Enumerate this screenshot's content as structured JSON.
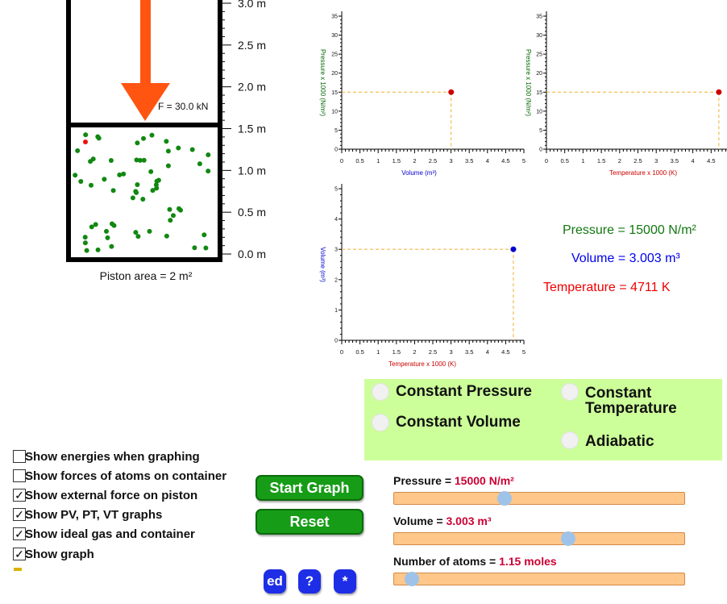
{
  "cylinder": {
    "force_label": "F = 30.0 kN",
    "piston_area": "Piston area = 2 m²",
    "scale_labels": [
      "3.0 m",
      "2.5 m",
      "2.0 m",
      "1.5 m",
      "1.0 m",
      "0.5 m",
      "0.0 m"
    ]
  },
  "graph_pv": {
    "ylabel": "Pressure x 1000 (N/m²)",
    "xlabel": "Volume (m³)",
    "yticks": [
      "0",
      "5",
      "10",
      "15",
      "20",
      "25",
      "30",
      "35"
    ],
    "xticks": [
      "0",
      "0.5",
      "1",
      "1.5",
      "2",
      "2.5",
      "3",
      "3.5",
      "4",
      "4.5",
      "5"
    ],
    "point": {
      "x": 3.003,
      "y": 15
    },
    "xlabel_color": "#0000cc",
    "ylabel_color": "#006600",
    "point_color": "#cc0000"
  },
  "graph_pt": {
    "ylabel": "Pressure x 1000 (N/m²)",
    "xlabel": "Temperature x 1000 (K)",
    "yticks": [
      "0",
      "5",
      "10",
      "15",
      "20",
      "25",
      "30",
      "35"
    ],
    "xticks": [
      "0",
      "0.5",
      "1",
      "1.5",
      "2",
      "2.5",
      "3",
      "3.5",
      "4",
      "4.5",
      "5"
    ],
    "point": {
      "x": 4.711,
      "y": 15
    },
    "xlabel_color": "#cc0000",
    "ylabel_color": "#006600",
    "point_color": "#cc0000"
  },
  "graph_vt": {
    "ylabel": "Volume (m³)",
    "xlabel": "Temperature x 1000 (K)",
    "yticks": [
      "0",
      "1",
      "2",
      "3",
      "4",
      "5"
    ],
    "xticks": [
      "0",
      "0.5",
      "1",
      "1.5",
      "2",
      "2.5",
      "3",
      "3.5",
      "4",
      "4.5",
      "5"
    ],
    "point": {
      "x": 4.711,
      "y": 3.003
    },
    "xlabel_color": "#cc0000",
    "ylabel_color": "#0000cc",
    "point_color": "#0000cc"
  },
  "readouts": {
    "pressure": "Pressure = 15000 N/m²",
    "volume": "Volume = 3.003 m³",
    "temperature": "Temperature = 4711 K"
  },
  "modes": {
    "constant_pressure": "Constant Pressure",
    "constant_volume": "Constant Volume",
    "constant_temperature_1": "Constant",
    "constant_temperature_2": "Temperature",
    "adiabatic": "Adiabatic"
  },
  "options": [
    {
      "label": "Show energies when graphing",
      "checked": false
    },
    {
      "label": "Show forces of atoms on container",
      "checked": false
    },
    {
      "label": "Show external force on piston",
      "checked": true
    },
    {
      "label": "Show PV, PT, VT graphs",
      "checked": true
    },
    {
      "label": "Show ideal gas and container",
      "checked": true
    },
    {
      "label": "Show graph",
      "checked": true
    }
  ],
  "buttons": {
    "start_graph": "Start Graph",
    "reset": "Reset",
    "edit": "ed",
    "help": "?",
    "star": "*"
  },
  "sliders": {
    "pressure_label": "Pressure = ",
    "pressure_value": "15000 N/m²",
    "pressure_fraction": 0.38,
    "volume_label": "Volume = ",
    "volume_value": "3.003 m³",
    "volume_fraction": 0.6,
    "atoms_label": "Number of atoms = ",
    "atoms_value": "1.15 moles",
    "atoms_fraction": 0.06
  },
  "colors": {
    "gas_atom": "#118811",
    "tracked_atom": "#ee1111",
    "force_arrow": "#ff5511",
    "pressure_text": "#117711",
    "volume_text": "#0000ee",
    "temperature_text": "#ee0000",
    "mode_panel": "#ccff99",
    "slider_track": "#ffc78a",
    "slider_value": "#cc0033"
  }
}
